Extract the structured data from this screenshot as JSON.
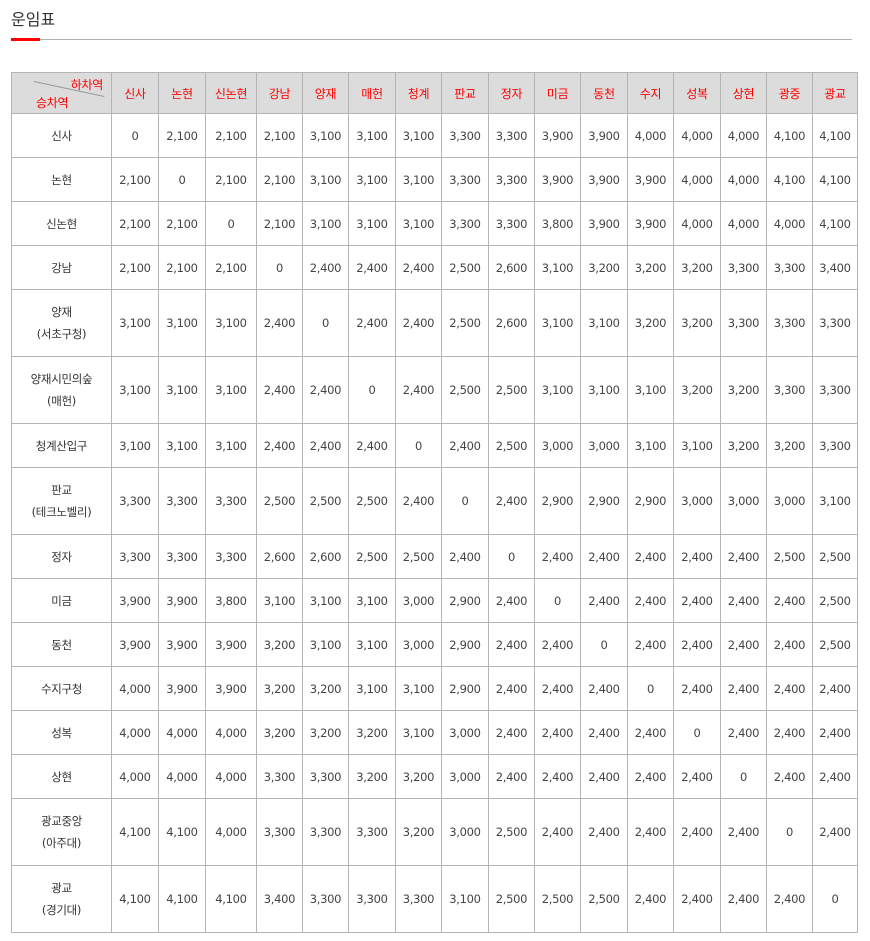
{
  "page": {
    "title": "운임표"
  },
  "table": {
    "corner_top": "하차역",
    "corner_bottom": "승차역",
    "columns": [
      "신사",
      "논현",
      "신논현",
      "강남",
      "양재",
      "매헌",
      "청계",
      "판교",
      "정자",
      "미금",
      "동천",
      "수지",
      "성복",
      "상현",
      "광중",
      "광교"
    ],
    "rows": [
      {
        "name": "신사",
        "sub": "",
        "values": [
          "0",
          "2,100",
          "2,100",
          "2,100",
          "3,100",
          "3,100",
          "3,100",
          "3,300",
          "3,300",
          "3,900",
          "3,900",
          "4,000",
          "4,000",
          "4,000",
          "4,100",
          "4,100"
        ]
      },
      {
        "name": "논현",
        "sub": "",
        "values": [
          "2,100",
          "0",
          "2,100",
          "2,100",
          "3,100",
          "3,100",
          "3,100",
          "3,300",
          "3,300",
          "3,900",
          "3,900",
          "3,900",
          "4,000",
          "4,000",
          "4,100",
          "4,100"
        ]
      },
      {
        "name": "신논현",
        "sub": "",
        "values": [
          "2,100",
          "2,100",
          "0",
          "2,100",
          "3,100",
          "3,100",
          "3,100",
          "3,300",
          "3,300",
          "3,800",
          "3,900",
          "3,900",
          "4,000",
          "4,000",
          "4,000",
          "4,100"
        ]
      },
      {
        "name": "강남",
        "sub": "",
        "values": [
          "2,100",
          "2,100",
          "2,100",
          "0",
          "2,400",
          "2,400",
          "2,400",
          "2,500",
          "2,600",
          "3,100",
          "3,200",
          "3,200",
          "3,200",
          "3,300",
          "3,300",
          "3,400"
        ]
      },
      {
        "name": "양재",
        "sub": "(서초구청)",
        "values": [
          "3,100",
          "3,100",
          "3,100",
          "2,400",
          "0",
          "2,400",
          "2,400",
          "2,500",
          "2,600",
          "3,100",
          "3,100",
          "3,200",
          "3,200",
          "3,300",
          "3,300",
          "3,300"
        ]
      },
      {
        "name": "양재시민의숲",
        "sub": "(매헌)",
        "values": [
          "3,100",
          "3,100",
          "3,100",
          "2,400",
          "2,400",
          "0",
          "2,400",
          "2,500",
          "2,500",
          "3,100",
          "3,100",
          "3,100",
          "3,200",
          "3,200",
          "3,300",
          "3,300"
        ]
      },
      {
        "name": "청계산입구",
        "sub": "",
        "values": [
          "3,100",
          "3,100",
          "3,100",
          "2,400",
          "2,400",
          "2,400",
          "0",
          "2,400",
          "2,500",
          "3,000",
          "3,000",
          "3,100",
          "3,100",
          "3,200",
          "3,200",
          "3,300"
        ]
      },
      {
        "name": "판교",
        "sub": "(테크노벨리)",
        "values": [
          "3,300",
          "3,300",
          "3,300",
          "2,500",
          "2,500",
          "2,500",
          "2,400",
          "0",
          "2,400",
          "2,900",
          "2,900",
          "2,900",
          "3,000",
          "3,000",
          "3,000",
          "3,100"
        ]
      },
      {
        "name": "정자",
        "sub": "",
        "values": [
          "3,300",
          "3,300",
          "3,300",
          "2,600",
          "2,600",
          "2,500",
          "2,500",
          "2,400",
          "0",
          "2,400",
          "2,400",
          "2,400",
          "2,400",
          "2,400",
          "2,500",
          "2,500"
        ]
      },
      {
        "name": "미금",
        "sub": "",
        "values": [
          "3,900",
          "3,900",
          "3,800",
          "3,100",
          "3,100",
          "3,100",
          "3,000",
          "2,900",
          "2,400",
          "0",
          "2,400",
          "2,400",
          "2,400",
          "2,400",
          "2,400",
          "2,500"
        ]
      },
      {
        "name": "동천",
        "sub": "",
        "values": [
          "3,900",
          "3,900",
          "3,900",
          "3,200",
          "3,100",
          "3,100",
          "3,000",
          "2,900",
          "2,400",
          "2,400",
          "0",
          "2,400",
          "2,400",
          "2,400",
          "2,400",
          "2,500"
        ]
      },
      {
        "name": "수지구청",
        "sub": "",
        "values": [
          "4,000",
          "3,900",
          "3,900",
          "3,200",
          "3,200",
          "3,100",
          "3,100",
          "2,900",
          "2,400",
          "2,400",
          "2,400",
          "0",
          "2,400",
          "2,400",
          "2,400",
          "2,400"
        ]
      },
      {
        "name": "성복",
        "sub": "",
        "values": [
          "4,000",
          "4,000",
          "4,000",
          "3,200",
          "3,200",
          "3,200",
          "3,100",
          "3,000",
          "2,400",
          "2,400",
          "2,400",
          "2,400",
          "0",
          "2,400",
          "2,400",
          "2,400"
        ]
      },
      {
        "name": "상현",
        "sub": "",
        "values": [
          "4,000",
          "4,000",
          "4,000",
          "3,300",
          "3,300",
          "3,200",
          "3,200",
          "3,000",
          "2,400",
          "2,400",
          "2,400",
          "2,400",
          "2,400",
          "0",
          "2,400",
          "2,400"
        ]
      },
      {
        "name": "광교중앙",
        "sub": "(아주대)",
        "values": [
          "4,100",
          "4,100",
          "4,000",
          "3,300",
          "3,300",
          "3,300",
          "3,200",
          "3,000",
          "2,500",
          "2,400",
          "2,400",
          "2,400",
          "2,400",
          "2,400",
          "0",
          "2,400"
        ]
      },
      {
        "name": "광교",
        "sub": "(경기대)",
        "values": [
          "4,100",
          "4,100",
          "4,100",
          "3,400",
          "3,300",
          "3,300",
          "3,300",
          "3,100",
          "2,500",
          "2,500",
          "2,500",
          "2,400",
          "2,400",
          "2,400",
          "2,400",
          "0"
        ]
      }
    ]
  },
  "colors": {
    "accent": "#ff0000",
    "header_bg": "#dcdcdc",
    "border": "#b4b4b4"
  }
}
